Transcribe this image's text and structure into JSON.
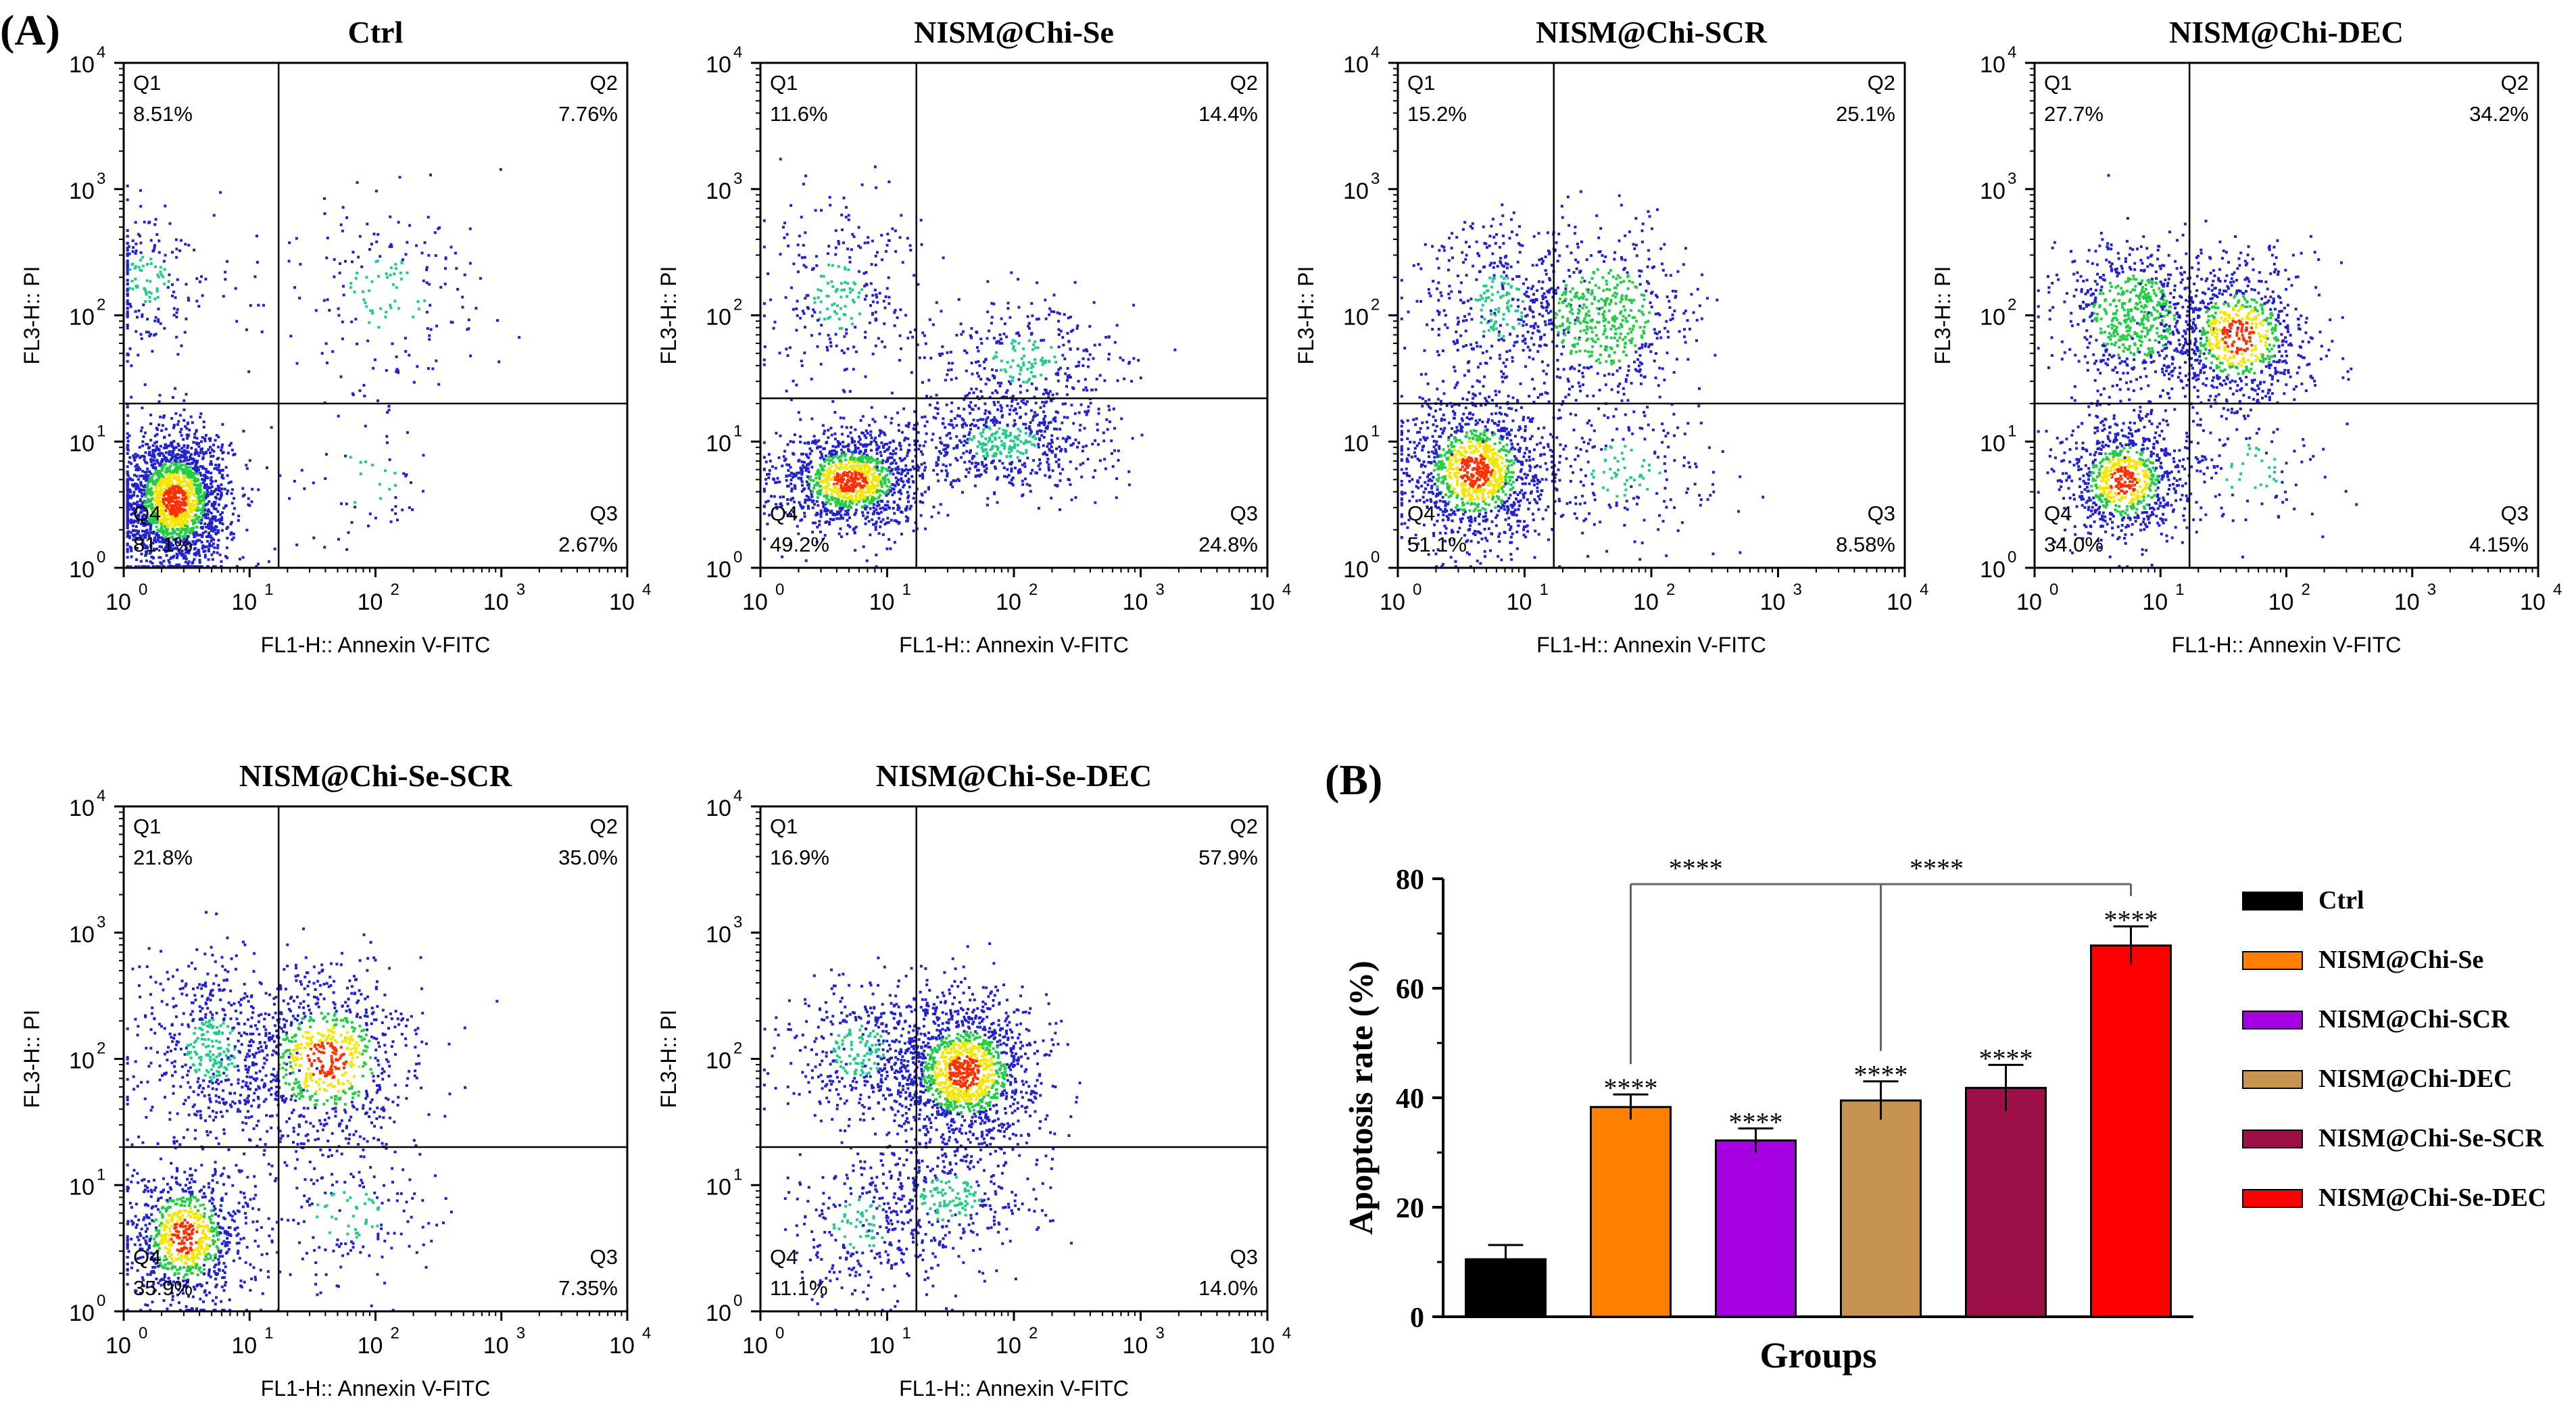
{
  "figure": {
    "panel_a_label": "(A)",
    "panel_b_label": "(B)"
  },
  "chart_data": [
    {
      "type": "scatter",
      "title": "Ctrl",
      "xlabel": "FL1-H:: Annexin V-FITC",
      "ylabel": "FL3-H:: PI",
      "xlim": [
        1,
        10000
      ],
      "ylim": [
        1,
        10000
      ],
      "scale": "log",
      "gate": {
        "x": 17,
        "y": 20
      },
      "quadrants": {
        "Q1": "8.51%",
        "Q2": "7.76%",
        "Q3": "2.67%",
        "Q4": "81.1%"
      },
      "quadrant_names": [
        "Q1",
        "Q2",
        "Q3",
        "Q4"
      ],
      "xticks": [
        "10",
        "10",
        "10",
        "10",
        "10"
      ],
      "xtick_exps": [
        "0",
        "1",
        "2",
        "3",
        "4"
      ],
      "yticks": [
        "10",
        "10",
        "10",
        "10",
        "10"
      ],
      "ytick_exps": [
        "0",
        "1",
        "2",
        "3",
        "4"
      ],
      "populations": [
        {
          "cx": 2.5,
          "cy": 3.5,
          "sx": 0.22,
          "sy": 0.28,
          "frac": 0.81
        },
        {
          "cx": 1.5,
          "cy": 200,
          "sx": 0.25,
          "sy": 0.3,
          "frac": 0.085
        },
        {
          "cx": 120,
          "cy": 150,
          "sx": 0.45,
          "sy": 0.4,
          "frac": 0.078
        },
        {
          "cx": 80,
          "cy": 5,
          "sx": 0.4,
          "sy": 0.3,
          "frac": 0.027
        }
      ]
    },
    {
      "type": "scatter",
      "title": "NISM@Chi-Se",
      "xlabel": "FL1-H:: Annexin V-FITC",
      "ylabel": "FL3-H:: PI",
      "xlim": [
        1,
        10000
      ],
      "ylim": [
        1,
        10000
      ],
      "scale": "log",
      "gate": {
        "x": 17,
        "y": 22
      },
      "quadrants": {
        "Q1": "11.6%",
        "Q2": "14.4%",
        "Q3": "24.8%",
        "Q4": "49.2%"
      },
      "quadrant_names": [
        "Q1",
        "Q2",
        "Q3",
        "Q4"
      ],
      "xticks": [
        "10",
        "10",
        "10",
        "10",
        "10"
      ],
      "xtick_exps": [
        "0",
        "1",
        "2",
        "3",
        "4"
      ],
      "yticks": [
        "10",
        "10",
        "10",
        "10",
        "10"
      ],
      "ytick_exps": [
        "0",
        "1",
        "2",
        "3",
        "4"
      ],
      "populations": [
        {
          "cx": 5,
          "cy": 5,
          "sx": 0.3,
          "sy": 0.2,
          "frac": 0.49
        },
        {
          "cx": 4,
          "cy": 150,
          "sx": 0.3,
          "sy": 0.4,
          "frac": 0.116
        },
        {
          "cx": 120,
          "cy": 45,
          "sx": 0.4,
          "sy": 0.25,
          "frac": 0.144
        },
        {
          "cx": 80,
          "cy": 10,
          "sx": 0.4,
          "sy": 0.2,
          "frac": 0.248
        }
      ]
    },
    {
      "type": "scatter",
      "title": "NISM@Chi-SCR",
      "xlabel": "FL1-H:: Annexin V-FITC",
      "ylabel": "FL3-H:: PI",
      "xlim": [
        1,
        10000
      ],
      "ylim": [
        1,
        10000
      ],
      "scale": "log",
      "gate": {
        "x": 17,
        "y": 20
      },
      "quadrants": {
        "Q1": "15.2%",
        "Q2": "25.1%",
        "Q3": "8.58%",
        "Q4": "51.1%"
      },
      "quadrant_names": [
        "Q1",
        "Q2",
        "Q3",
        "Q4"
      ],
      "xticks": [
        "10",
        "10",
        "10",
        "10",
        "10"
      ],
      "xtick_exps": [
        "0",
        "1",
        "2",
        "3",
        "4"
      ],
      "yticks": [
        "10",
        "10",
        "10",
        "10",
        "10"
      ],
      "ytick_exps": [
        "0",
        "1",
        "2",
        "3",
        "4"
      ],
      "populations": [
        {
          "cx": 4,
          "cy": 6,
          "sx": 0.3,
          "sy": 0.3,
          "frac": 0.51
        },
        {
          "cx": 6,
          "cy": 120,
          "sx": 0.3,
          "sy": 0.35,
          "frac": 0.152
        },
        {
          "cx": 40,
          "cy": 100,
          "sx": 0.35,
          "sy": 0.35,
          "frac": 0.251
        },
        {
          "cx": 60,
          "cy": 6,
          "sx": 0.4,
          "sy": 0.3,
          "frac": 0.086
        }
      ]
    },
    {
      "type": "scatter",
      "title": "NISM@Chi-DEC",
      "xlabel": "FL1-H:: Annexin V-FITC",
      "ylabel": "FL3-H:: PI",
      "xlim": [
        1,
        10000
      ],
      "ylim": [
        1,
        10000
      ],
      "scale": "log",
      "gate": {
        "x": 17,
        "y": 20
      },
      "quadrants": {
        "Q1": "27.7%",
        "Q2": "34.2%",
        "Q3": "4.15%",
        "Q4": "34.0%"
      },
      "quadrant_names": [
        "Q1",
        "Q2",
        "Q3",
        "Q4"
      ],
      "xticks": [
        "10",
        "10",
        "10",
        "10",
        "10"
      ],
      "xtick_exps": [
        "0",
        "1",
        "2",
        "3",
        "4"
      ],
      "yticks": [
        "10",
        "10",
        "10",
        "10",
        "10"
      ],
      "ytick_exps": [
        "0",
        "1",
        "2",
        "3",
        "4"
      ],
      "populations": [
        {
          "cx": 5,
          "cy": 5,
          "sx": 0.25,
          "sy": 0.25,
          "frac": 0.34
        },
        {
          "cx": 6,
          "cy": 100,
          "sx": 0.3,
          "sy": 0.3,
          "frac": 0.277
        },
        {
          "cx": 40,
          "cy": 70,
          "sx": 0.3,
          "sy": 0.3,
          "frac": 0.342
        },
        {
          "cx": 50,
          "cy": 6,
          "sx": 0.35,
          "sy": 0.3,
          "frac": 0.041
        }
      ]
    },
    {
      "type": "scatter",
      "title": "NISM@Chi-Se-SCR",
      "xlabel": "FL1-H:: Annexin V-FITC",
      "ylabel": "FL3-H:: PI",
      "xlim": [
        1,
        10000
      ],
      "ylim": [
        1,
        10000
      ],
      "scale": "log",
      "gate": {
        "x": 17,
        "y": 20
      },
      "quadrants": {
        "Q1": "21.8%",
        "Q2": "35.0%",
        "Q3": "7.35%",
        "Q4": "35.9%"
      },
      "quadrant_names": [
        "Q1",
        "Q2",
        "Q3",
        "Q4"
      ],
      "xticks": [
        "10",
        "10",
        "10",
        "10",
        "10"
      ],
      "xtick_exps": [
        "0",
        "1",
        "2",
        "3",
        "4"
      ],
      "yticks": [
        "10",
        "10",
        "10",
        "10",
        "10"
      ],
      "ytick_exps": [
        "0",
        "1",
        "2",
        "3",
        "4"
      ],
      "populations": [
        {
          "cx": 3,
          "cy": 4,
          "sx": 0.25,
          "sy": 0.3,
          "frac": 0.359
        },
        {
          "cx": 5,
          "cy": 120,
          "sx": 0.3,
          "sy": 0.35,
          "frac": 0.218
        },
        {
          "cx": 40,
          "cy": 100,
          "sx": 0.35,
          "sy": 0.35,
          "frac": 0.35
        },
        {
          "cx": 60,
          "cy": 6,
          "sx": 0.4,
          "sy": 0.3,
          "frac": 0.073
        }
      ]
    },
    {
      "type": "scatter",
      "title": "NISM@Chi-Se-DEC",
      "xlabel": "FL1-H:: Annexin V-FITC",
      "ylabel": "FL3-H:: PI",
      "xlim": [
        1,
        10000
      ],
      "ylim": [
        1,
        10000
      ],
      "scale": "log",
      "gate": {
        "x": 17,
        "y": 20
      },
      "quadrants": {
        "Q1": "16.9%",
        "Q2": "57.9%",
        "Q3": "14.0%",
        "Q4": "11.1%"
      },
      "quadrant_names": [
        "Q1",
        "Q2",
        "Q3",
        "Q4"
      ],
      "xticks": [
        "10",
        "10",
        "10",
        "10",
        "10"
      ],
      "xtick_exps": [
        "0",
        "1",
        "2",
        "3",
        "4"
      ],
      "yticks": [
        "10",
        "10",
        "10",
        "10",
        "10"
      ],
      "ytick_exps": [
        "0",
        "1",
        "2",
        "3",
        "4"
      ],
      "populations": [
        {
          "cx": 6,
          "cy": 5,
          "sx": 0.3,
          "sy": 0.3,
          "frac": 0.111
        },
        {
          "cx": 6,
          "cy": 120,
          "sx": 0.3,
          "sy": 0.3,
          "frac": 0.169
        },
        {
          "cx": 40,
          "cy": 80,
          "sx": 0.3,
          "sy": 0.3,
          "frac": 0.579
        },
        {
          "cx": 30,
          "cy": 8,
          "sx": 0.35,
          "sy": 0.25,
          "frac": 0.14
        }
      ]
    },
    {
      "type": "bar",
      "categories": [
        "Ctrl",
        "NISM@Chi-Se",
        "NISM@Chi-SCR",
        "NISM@Chi-DEC",
        "NISM@Chi-Se-SCR",
        "NISM@Chi-Se-DEC"
      ],
      "values": [
        10.5,
        38.3,
        32.2,
        39.5,
        41.8,
        67.8
      ],
      "errors": [
        2.6,
        2.3,
        2.2,
        3.5,
        4.2,
        3.5
      ],
      "colors": [
        "#000000",
        "#ff7f00",
        "#a400e0",
        "#c79350",
        "#9c0f47",
        "#ff0000"
      ],
      "significance": [
        "",
        "****",
        "****",
        "****",
        "****",
        "****"
      ],
      "brackets": [
        {
          "from": 1,
          "to": 5,
          "label": "****"
        },
        {
          "from": 3,
          "to": 5,
          "label": "****"
        }
      ],
      "title": "",
      "xlabel": "Groups",
      "ylabel": "Apoptosis rate (%)",
      "ylim": [
        0,
        80
      ],
      "yticks": [
        "0",
        "20",
        "40",
        "60",
        "80"
      ],
      "legend": "right"
    }
  ]
}
